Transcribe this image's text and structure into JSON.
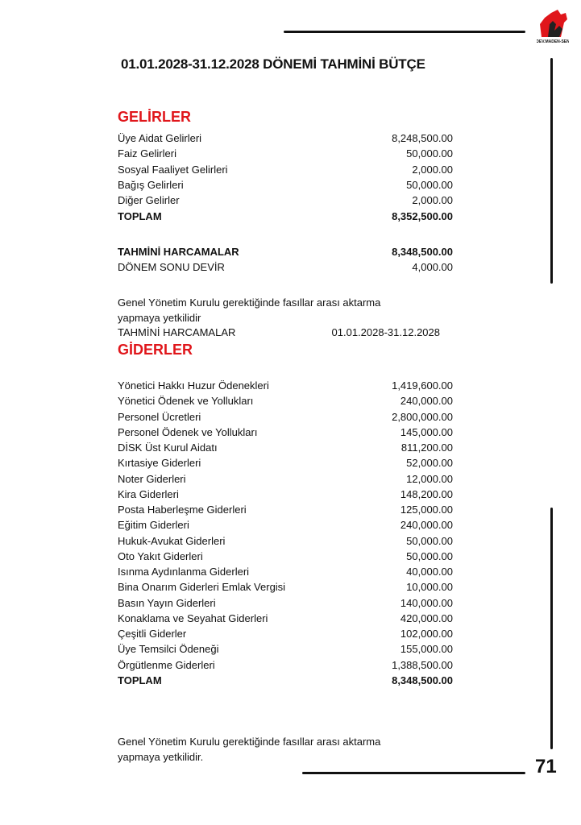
{
  "logo_text": "DEV.MADEN-SEN",
  "title": "01.01.2028-31.12.2028 DÖNEMİ TAHMİNİ BÜTÇE",
  "income": {
    "heading": "GELİRLER",
    "items": [
      {
        "label": "Üye Aidat Gelirleri",
        "value": "8,248,500.00"
      },
      {
        "label": "Faiz Gelirleri",
        "value": "50,000.00"
      },
      {
        "label": "Sosyal Faaliyet Gelirleri",
        "value": "2,000.00"
      },
      {
        "label": "Bağış Gelirleri",
        "value": "50,000.00"
      },
      {
        "label": "Diğer Gelirler",
        "value": "2,000.00"
      }
    ],
    "total": {
      "label": "TOPLAM",
      "value": "8,352,500.00"
    }
  },
  "summary": {
    "expenses": {
      "label": "TAHMİNİ HARCAMALAR",
      "value": "8,348,500.00"
    },
    "carry": {
      "label": "DÖNEM SONU DEVİR",
      "value": "4,000.00"
    }
  },
  "note1": {
    "line1": "Genel Yönetim Kurulu gerektiğinde fasıllar arası aktarma",
    "line2": "yapmaya yetkilidir"
  },
  "period": {
    "label": "TAHMİNİ HARCAMALAR",
    "value": "01.01.2028-31.12.2028"
  },
  "expenses": {
    "heading": "GİDERLER",
    "items": [
      {
        "label": "Yönetici Hakkı Huzur Ödenekleri",
        "value": "1,419,600.00"
      },
      {
        "label": "Yönetici Ödenek ve Yollukları",
        "value": "240,000.00"
      },
      {
        "label": "Personel Ücretleri",
        "value": "2,800,000.00"
      },
      {
        "label": "Personel Ödenek ve Yollukları",
        "value": "145,000.00"
      },
      {
        "label": "DİSK Üst Kurul Aidatı",
        "value": "811,200.00"
      },
      {
        "label": "Kırtasiye Giderleri",
        "value": "52,000.00"
      },
      {
        "label": "Noter Giderleri",
        "value": "12,000.00"
      },
      {
        "label": "Kira Giderleri",
        "value": "148,200.00"
      },
      {
        "label": "Posta Haberleşme Giderleri",
        "value": "125,000.00"
      },
      {
        "label": "Eğitim Giderleri",
        "value": "240,000.00"
      },
      {
        "label": "Hukuk-Avukat Giderleri",
        "value": "50,000.00"
      },
      {
        "label": "Oto Yakıt Giderleri",
        "value": "50,000.00"
      },
      {
        "label": "Isınma Aydınlanma Giderleri",
        "value": "40,000.00"
      },
      {
        "label": "Bina Onarım Giderleri Emlak Vergisi",
        "value": "10,000.00"
      },
      {
        "label": "Basın Yayın Giderleri",
        "value": "140,000.00"
      },
      {
        "label": "Konaklama ve Seyahat Giderleri",
        "value": "420,000.00"
      },
      {
        "label": "Çeşitli Giderler",
        "value": "102,000.00"
      },
      {
        "label": "Üye Temsilci Ödeneği",
        "value": "155,000.00"
      },
      {
        "label": "Örgütlenme Giderleri",
        "value": "1,388,500.00"
      }
    ],
    "total": {
      "label": "TOPLAM",
      "value": "8,348,500.00"
    }
  },
  "note2": {
    "line1": "Genel Yönetim Kurulu gerektiğinde fasıllar arası aktarma",
    "line2": "yapmaya yetkilidir."
  },
  "page_number": "71",
  "colors": {
    "accent": "#e0161b",
    "text": "#111111"
  }
}
